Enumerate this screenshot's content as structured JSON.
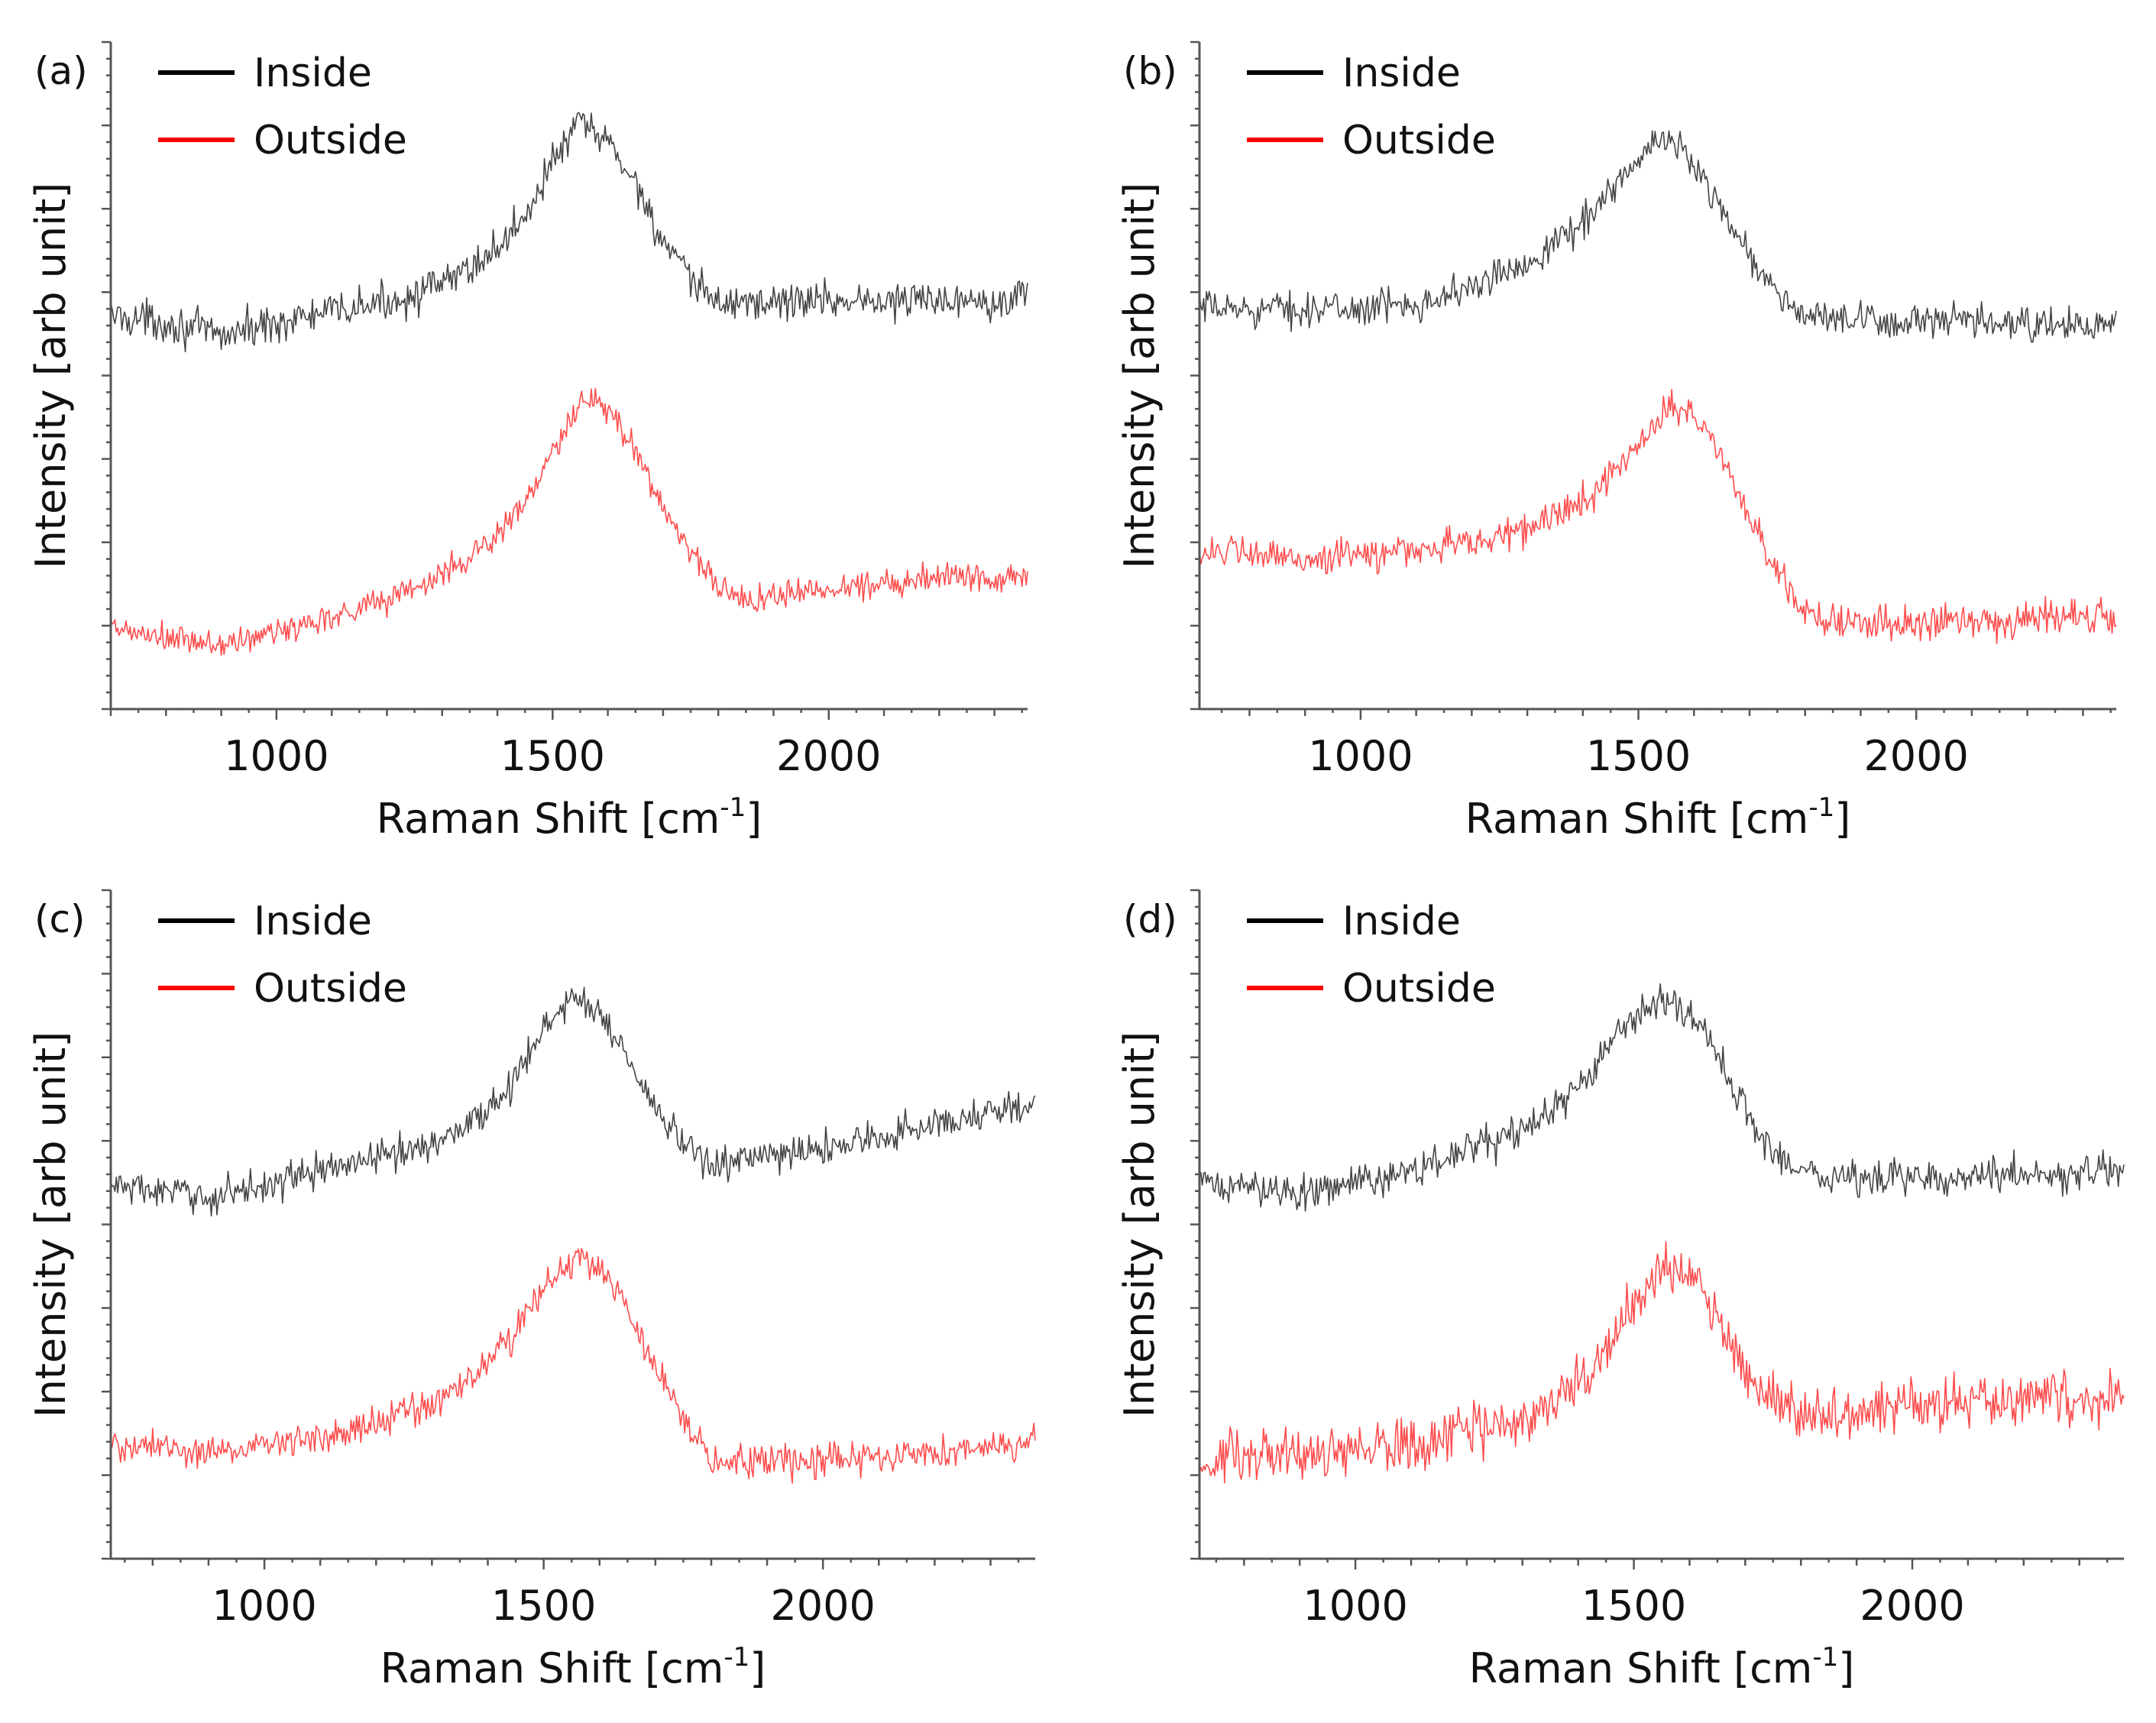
{
  "figure": {
    "background": "#ffffff"
  },
  "chart_data": [
    {
      "type": "line",
      "panel_label": "(a)",
      "xlabel": "Raman Shift [cm",
      "xlabel_sup": "-1",
      "xlabel_end": "]",
      "ylabel": "Intensity [arb unit]",
      "xlim": [
        700,
        2360
      ],
      "ylim": [
        0,
        100
      ],
      "xticks": [
        "1000",
        "1500",
        "2000"
      ],
      "xtick_values": [
        1000,
        1500,
        2000
      ],
      "legend": [
        {
          "name": "Inside",
          "color": "#000000"
        },
        {
          "name": "Outside",
          "color": "#ff0000"
        }
      ],
      "series": [
        {
          "name": "Inside",
          "color": "#444444",
          "x": [
            700,
            800,
            900,
            1000,
            1100,
            1200,
            1300,
            1400,
            1450,
            1500,
            1550,
            1600,
            1650,
            1700,
            1750,
            1800,
            1900,
            2000,
            2100,
            2200,
            2300,
            2360
          ],
          "y": [
            59,
            58,
            56,
            58,
            59.5,
            61,
            63.5,
            69,
            74,
            82,
            88,
            85,
            79,
            70,
            64,
            61,
            61,
            61.5,
            61,
            61.5,
            61.5,
            62
          ],
          "noise": 2.0
        },
        {
          "name": "Outside",
          "color": "#ff4d4d",
          "x": [
            700,
            800,
            900,
            1000,
            1100,
            1200,
            1300,
            1400,
            1450,
            1500,
            1550,
            1600,
            1650,
            1700,
            1750,
            1800,
            1850,
            1900,
            2000,
            2100,
            2200,
            2300,
            2360
          ],
          "y": [
            12,
            10.5,
            9.5,
            11.5,
            14,
            16.5,
            20,
            26,
            31,
            38,
            46,
            45,
            39,
            30,
            24,
            18,
            16.5,
            17,
            18,
            19,
            20,
            20,
            20
          ],
          "noise": 1.6
        }
      ]
    },
    {
      "type": "line",
      "panel_label": "(b)",
      "xlabel": "Raman Shift [cm",
      "xlabel_sup": "-1",
      "xlabel_end": "]",
      "ylabel": "Intensity [arb unit]",
      "xlim": [
        710,
        2360
      ],
      "ylim": [
        0,
        100
      ],
      "xticks": [
        "1000",
        "1500",
        "2000"
      ],
      "xtick_values": [
        1000,
        1500,
        2000
      ],
      "legend": [
        {
          "name": "Inside",
          "color": "#000000"
        },
        {
          "name": "Outside",
          "color": "#ff0000"
        }
      ],
      "series": [
        {
          "name": "Inside",
          "color": "#444444",
          "x": [
            710,
            800,
            900,
            1000,
            1100,
            1200,
            1300,
            1400,
            1450,
            1500,
            1550,
            1600,
            1650,
            1700,
            1750,
            1800,
            1900,
            2000,
            2100,
            2200,
            2300,
            2360
          ],
          "y": [
            60,
            60,
            60,
            60,
            61,
            63,
            67,
            73,
            78,
            82,
            86,
            82,
            75,
            68,
            62,
            59,
            58,
            58,
            58,
            57.5,
            57.5,
            57.5
          ],
          "noise": 1.8
        },
        {
          "name": "Outside",
          "color": "#ff4d4d",
          "x": [
            710,
            800,
            900,
            1000,
            1100,
            1200,
            1300,
            1400,
            1450,
            1500,
            1550,
            1600,
            1650,
            1700,
            1750,
            1800,
            1850,
            1900,
            2000,
            2100,
            2200,
            2300,
            2360
          ],
          "y": [
            24,
            23,
            22.5,
            23,
            24,
            25,
            27,
            31,
            35,
            40,
            45,
            44,
            38,
            29,
            20,
            15,
            13,
            12.5,
            13,
            13.5,
            13.5,
            14,
            14
          ],
          "noise": 1.8
        }
      ]
    },
    {
      "type": "line",
      "panel_label": "(c)",
      "xlabel": "Raman Shift [cm",
      "xlabel_sup": "-1",
      "xlabel_end": "]",
      "ylabel": "Intensity [arb unit]",
      "xlim": [
        725,
        2380
      ],
      "ylim": [
        0,
        100
      ],
      "xticks": [
        "1000",
        "1500",
        "2000"
      ],
      "xtick_values": [
        1000,
        1500,
        2000
      ],
      "legend": [
        {
          "name": "Inside",
          "color": "#000000"
        },
        {
          "name": "Outside",
          "color": "#ff0000"
        }
      ],
      "series": [
        {
          "name": "Inside",
          "color": "#444444",
          "x": [
            725,
            800,
            900,
            1000,
            1100,
            1200,
            1300,
            1400,
            1450,
            1500,
            1550,
            1600,
            1650,
            1700,
            1750,
            1800,
            1850,
            1900,
            2000,
            2100,
            2200,
            2300,
            2380
          ],
          "y": [
            56,
            55,
            54,
            56,
            58,
            60,
            62,
            67,
            72,
            79,
            84,
            82,
            75,
            67,
            62,
            59,
            59.5,
            60,
            61.5,
            63,
            65,
            67,
            68
          ],
          "noise": 1.8
        },
        {
          "name": "Outside",
          "color": "#ff4d4d",
          "x": [
            725,
            800,
            900,
            1000,
            1100,
            1200,
            1300,
            1400,
            1450,
            1500,
            1550,
            1600,
            1650,
            1700,
            1750,
            1800,
            1850,
            1900,
            2000,
            2100,
            2200,
            2300,
            2380
          ],
          "y": [
            17,
            16.5,
            16,
            17,
            18.5,
            20.5,
            23,
            29,
            34,
            40,
            45,
            44,
            37,
            28,
            21,
            15,
            14,
            14.5,
            15,
            15.5,
            16,
            17,
            17
          ],
          "noise": 1.8
        }
      ]
    },
    {
      "type": "line",
      "panel_label": "(d)",
      "xlabel": "Raman Shift [cm",
      "xlabel_sup": "-1",
      "xlabel_end": "]",
      "ylabel": "Intensity [arb unit]",
      "xlim": [
        720,
        2380
      ],
      "ylim": [
        0,
        100
      ],
      "xticks": [
        "1000",
        "1500",
        "2000"
      ],
      "xtick_values": [
        1000,
        1500,
        2000
      ],
      "legend": [
        {
          "name": "Inside",
          "color": "#000000"
        },
        {
          "name": "Outside",
          "color": "#ff0000"
        }
      ],
      "series": [
        {
          "name": "Inside",
          "color": "#444444",
          "x": [
            720,
            800,
            900,
            1000,
            1100,
            1200,
            1300,
            1400,
            1450,
            1500,
            1550,
            1600,
            1650,
            1700,
            1750,
            1800,
            1850,
            1900,
            2000,
            2100,
            2200,
            2300,
            2380
          ],
          "y": [
            56,
            55.5,
            55,
            56,
            58,
            61,
            64,
            70,
            76,
            81,
            84,
            81,
            75,
            67,
            61,
            58,
            57,
            57,
            57,
            57.5,
            57.5,
            57.5,
            58
          ],
          "noise": 1.9
        },
        {
          "name": "Outside",
          "color": "#ff4d4d",
          "x": [
            720,
            800,
            900,
            1000,
            1100,
            1200,
            1300,
            1400,
            1450,
            1500,
            1550,
            1600,
            1650,
            1700,
            1750,
            1800,
            1850,
            1900,
            2000,
            2100,
            2200,
            2300,
            2380
          ],
          "y": [
            15,
            15,
            15,
            16,
            17.5,
            19,
            21,
            26,
            32,
            38,
            43,
            44,
            36,
            28,
            24,
            22,
            21,
            22,
            23,
            23.5,
            24,
            24,
            24
          ],
          "noise": 2.8
        }
      ]
    }
  ]
}
